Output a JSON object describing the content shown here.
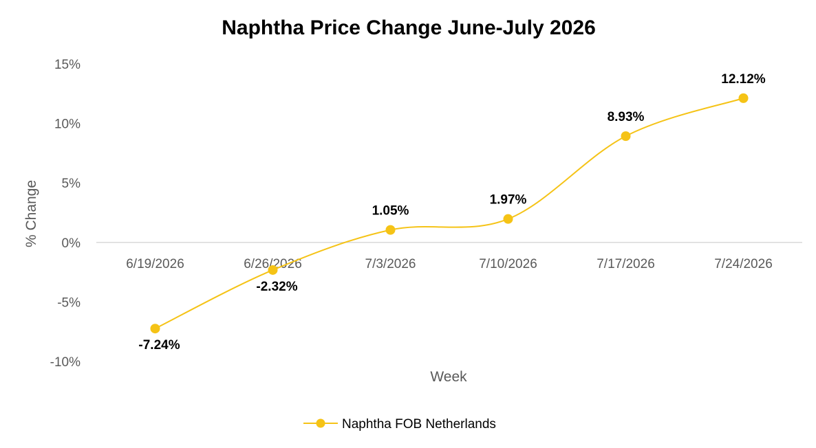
{
  "chart_data": {
    "type": "line",
    "title": "Naphtha Price Change June-July 2026",
    "xlabel": "Week",
    "ylabel": "% Change",
    "categories": [
      "6/19/2026",
      "6/26/2026",
      "7/3/2026",
      "7/10/2026",
      "7/17/2026",
      "7/24/2026"
    ],
    "series": [
      {
        "name": "Naphtha FOB Netherlands",
        "values": [
          -7.24,
          -2.32,
          1.05,
          1.97,
          8.93,
          12.12
        ],
        "labels": [
          "-7.24%",
          "-2.32%",
          "1.05%",
          "1.97%",
          "8.93%",
          "12.12%"
        ],
        "color": "#F5C316"
      }
    ],
    "yticks": [
      15,
      10,
      5,
      0,
      -5,
      -10
    ],
    "ytick_labels": [
      "15%",
      "10%",
      "5%",
      "0%",
      "-5%",
      "-10%"
    ],
    "ylim": [
      -10,
      15
    ],
    "grid": false,
    "legend_position": "bottom",
    "axis_color": "#D9D9D9"
  }
}
